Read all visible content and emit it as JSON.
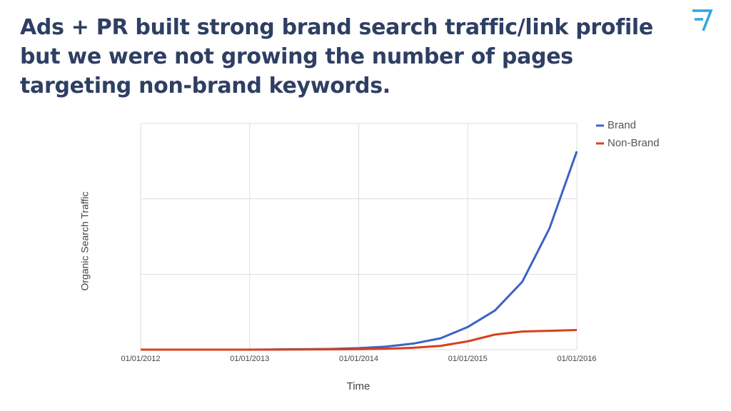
{
  "slide_title": "Ads + PR built strong brand search traffic/link profile but we were not growing the number of pages targeting non-brand keywords.",
  "chart_data": {
    "type": "line",
    "xlabel": "Time",
    "ylabel": "Organic Search Traffic",
    "x": [
      2012,
      2012.25,
      2012.5,
      2012.75,
      2013,
      2013.25,
      2013.5,
      2013.75,
      2014,
      2014.25,
      2014.5,
      2014.75,
      2015,
      2015.25,
      2015.5,
      2015.75,
      2016
    ],
    "series": [
      {
        "name": "Brand",
        "color": "#3c63c4",
        "values": [
          0,
          0,
          0,
          0,
          0,
          0.003,
          0.006,
          0.01,
          0.02,
          0.04,
          0.08,
          0.15,
          0.3,
          0.52,
          0.9,
          1.61,
          2.63
        ]
      },
      {
        "name": "Non-Brand",
        "color": "#d9401e",
        "values": [
          0,
          0,
          0,
          0,
          0,
          0,
          0.002,
          0.004,
          0.006,
          0.012,
          0.025,
          0.05,
          0.11,
          0.2,
          0.24,
          0.25,
          0.26
        ]
      }
    ],
    "xlim": [
      2012,
      2016
    ],
    "xticks": [
      {
        "value": 2012,
        "label": "01/01/2012"
      },
      {
        "value": 2013,
        "label": "01/01/2013"
      },
      {
        "value": 2014,
        "label": "01/01/2014"
      },
      {
        "value": 2015,
        "label": "01/01/2015"
      },
      {
        "value": 2016,
        "label": "01/01/2016"
      }
    ],
    "ylim": [
      0,
      3
    ],
    "yticks": [
      0,
      1,
      2,
      3
    ],
    "show_ytick_labels": false,
    "grid": true,
    "legend": "top-right"
  }
}
